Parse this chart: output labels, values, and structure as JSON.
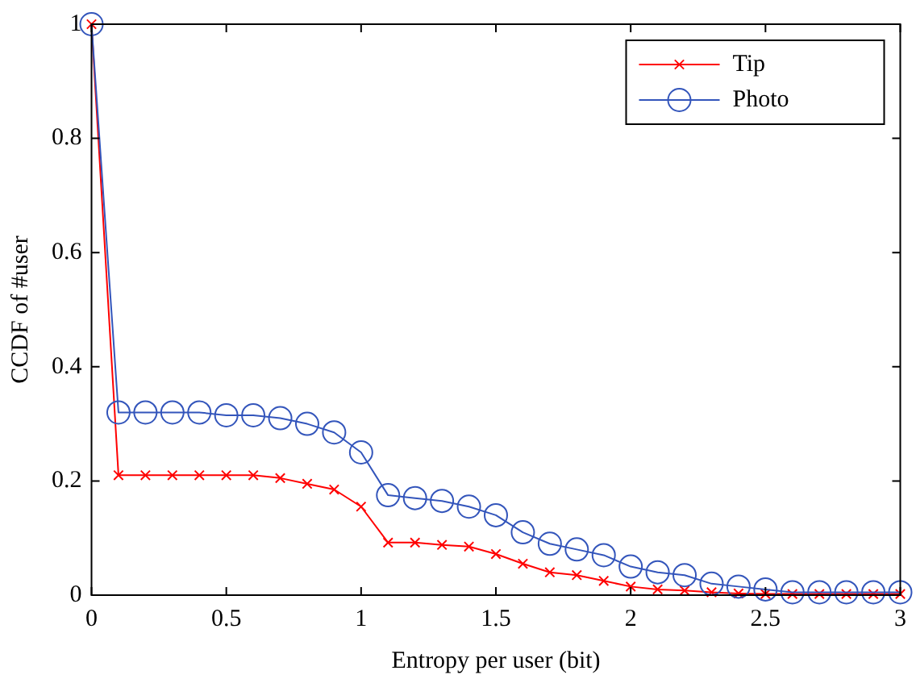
{
  "chart_data": {
    "type": "line",
    "xlabel": "Entropy per user (bit)",
    "ylabel": "CCDF of #user",
    "x": [
      0,
      0.1,
      0.2,
      0.3,
      0.4,
      0.5,
      0.6,
      0.7,
      0.8,
      0.9,
      1,
      1.1,
      1.2,
      1.3,
      1.4,
      1.5,
      1.6,
      1.7,
      1.8,
      1.9,
      2,
      2.1,
      2.2,
      2.3,
      2.4,
      2.5,
      2.6,
      2.7,
      2.8,
      2.9,
      3
    ],
    "series": [
      {
        "name": "Tip",
        "color": "#ff0000",
        "marker": "cross",
        "values": [
          1,
          0.21,
          0.21,
          0.21,
          0.21,
          0.21,
          0.21,
          0.205,
          0.195,
          0.185,
          0.155,
          0.092,
          0.092,
          0.088,
          0.085,
          0.072,
          0.055,
          0.04,
          0.035,
          0.025,
          0.015,
          0.01,
          0.008,
          0.005,
          0.003,
          0.002,
          0.002,
          0.002,
          0.002,
          0.002,
          0.002
        ]
      },
      {
        "name": "Photo",
        "color": "#3355bb",
        "marker": "circle",
        "values": [
          1,
          0.32,
          0.32,
          0.32,
          0.32,
          0.315,
          0.315,
          0.31,
          0.3,
          0.285,
          0.25,
          0.175,
          0.17,
          0.165,
          0.155,
          0.14,
          0.11,
          0.09,
          0.08,
          0.07,
          0.05,
          0.04,
          0.035,
          0.02,
          0.015,
          0.01,
          0.005,
          0.005,
          0.005,
          0.005,
          0.005
        ]
      }
    ],
    "xlim": [
      0,
      3
    ],
    "xticks": [
      0,
      0.5,
      1,
      1.5,
      2,
      2.5,
      3
    ],
    "ylim": [
      0,
      1
    ],
    "yticks": [
      0,
      0.2,
      0.4,
      0.6,
      0.8,
      1
    ],
    "grid": false,
    "legend": "top right",
    "line_style": "solid"
  }
}
